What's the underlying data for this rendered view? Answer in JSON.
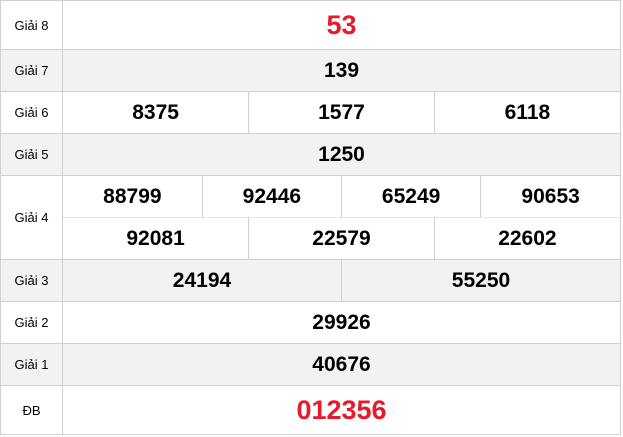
{
  "rows": [
    {
      "label": "Giải 8",
      "values": [
        "53"
      ]
    },
    {
      "label": "Giải 7",
      "values": [
        "139"
      ]
    },
    {
      "label": "Giải 6",
      "values": [
        "8375",
        "1577",
        "6118"
      ]
    },
    {
      "label": "Giải 5",
      "values": [
        "1250"
      ]
    },
    {
      "label": "Giải 4",
      "line1": [
        "88799",
        "92446",
        "65249",
        "90653"
      ],
      "line2": [
        "92081",
        "22579",
        "22602"
      ]
    },
    {
      "label": "Giải 3",
      "values": [
        "24194",
        "55250"
      ]
    },
    {
      "label": "Giải 2",
      "values": [
        "29926"
      ]
    },
    {
      "label": "Giải 1",
      "values": [
        "40676"
      ]
    },
    {
      "label": "ĐB",
      "values": [
        "012356"
      ]
    }
  ],
  "colors": {
    "highlight": "#e51a2a",
    "alt_row": "#f2f2f2"
  }
}
